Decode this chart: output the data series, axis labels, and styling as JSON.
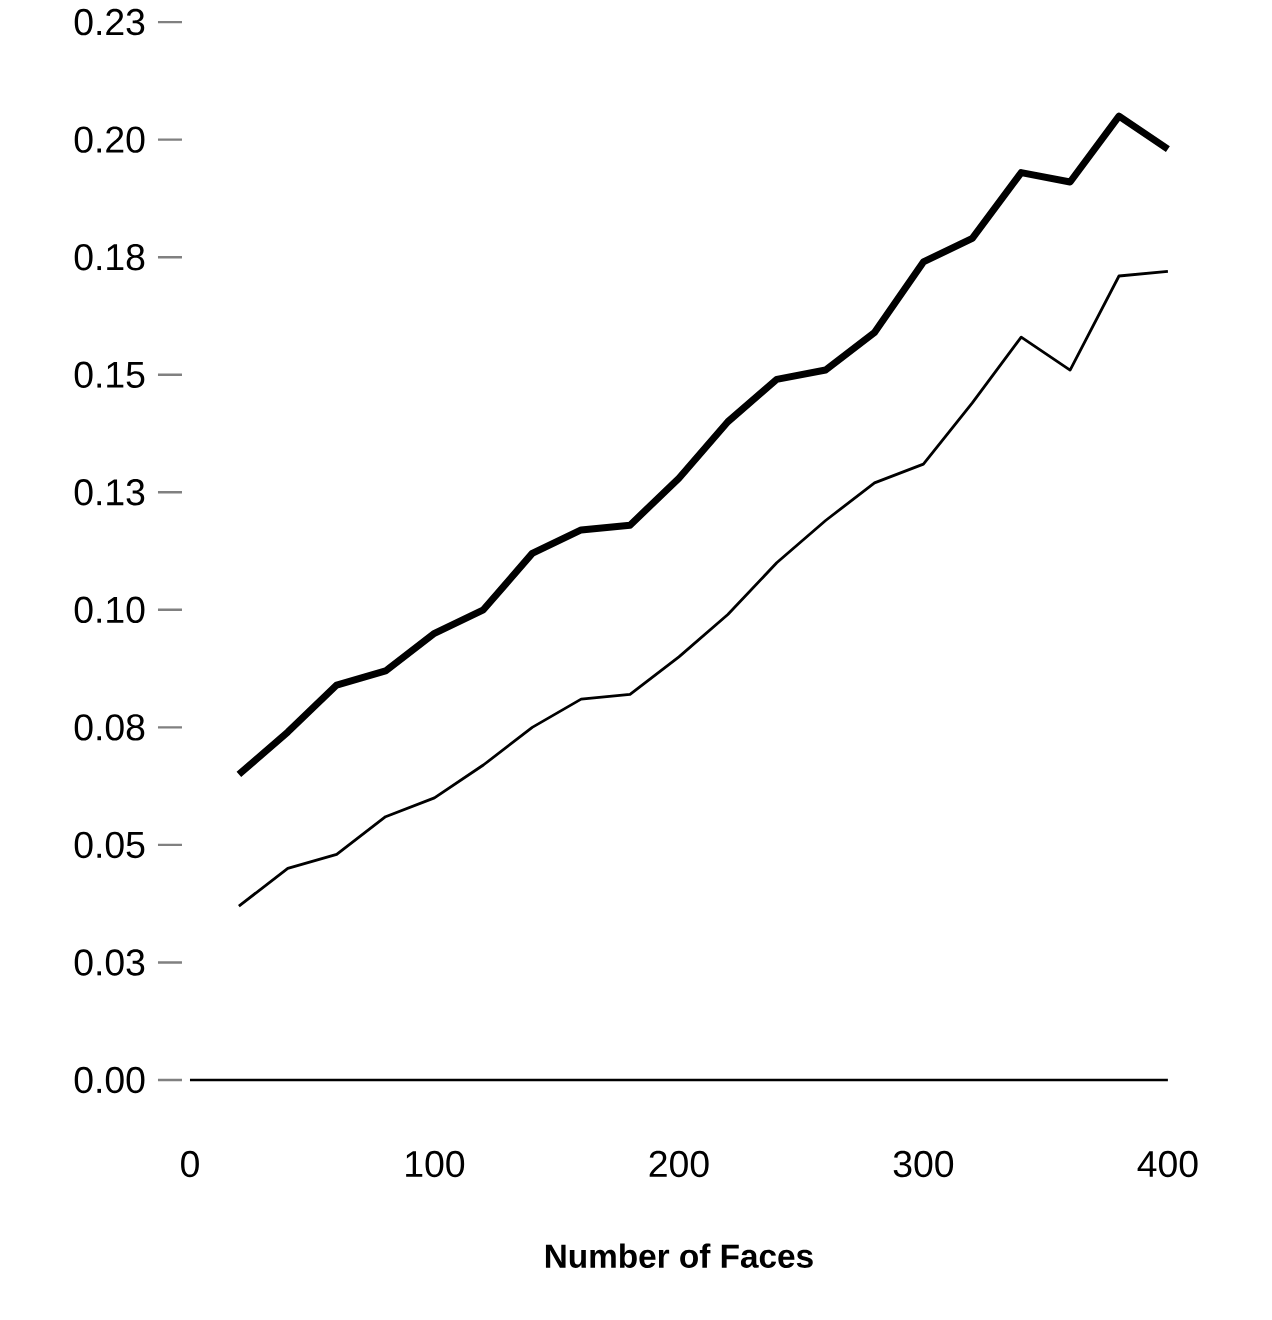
{
  "chart_data": {
    "type": "line",
    "xlabel": "Number of Faces",
    "x": [
      20,
      40,
      60,
      80,
      100,
      120,
      140,
      160,
      180,
      200,
      220,
      240,
      260,
      280,
      300,
      320,
      340,
      360,
      380,
      400
    ],
    "series": [
      {
        "color": "#000000",
        "values": [
          0.065,
          0.074,
          0.084,
          0.087,
          0.095,
          0.1,
          0.112,
          0.117,
          0.118,
          0.128,
          0.14,
          0.149,
          0.151,
          0.159,
          0.174,
          0.179,
          0.193,
          0.191,
          0.205,
          0.198
        ]
      },
      {
        "color": "#000000",
        "values": [
          0.037,
          0.045,
          0.048,
          0.056,
          0.06,
          0.067,
          0.075,
          0.081,
          0.082,
          0.09,
          0.099,
          0.11,
          0.119,
          0.127,
          0.131,
          0.144,
          0.158,
          0.151,
          0.171,
          0.172
        ]
      }
    ],
    "xlim": [
      0,
      400
    ],
    "xticks": [
      0,
      100,
      200,
      300,
      400
    ],
    "ylim": [
      0,
      0.225
    ],
    "yticks": [
      {
        "value": 0,
        "label": "0.00"
      },
      {
        "value": 0.025,
        "label": "0.03"
      },
      {
        "value": 0.05,
        "label": "0.05"
      },
      {
        "value": 0.075,
        "label": "0.08"
      },
      {
        "value": 0.1,
        "label": "0.10"
      },
      {
        "value": 0.125,
        "label": "0.13"
      },
      {
        "value": 0.15,
        "label": "0.15"
      },
      {
        "value": 0.175,
        "label": "0.18"
      },
      {
        "value": 0.2,
        "label": "0.20"
      },
      {
        "value": 0.225,
        "label": "0.23"
      }
    ],
    "marker": "none",
    "line_style": "solid"
  }
}
